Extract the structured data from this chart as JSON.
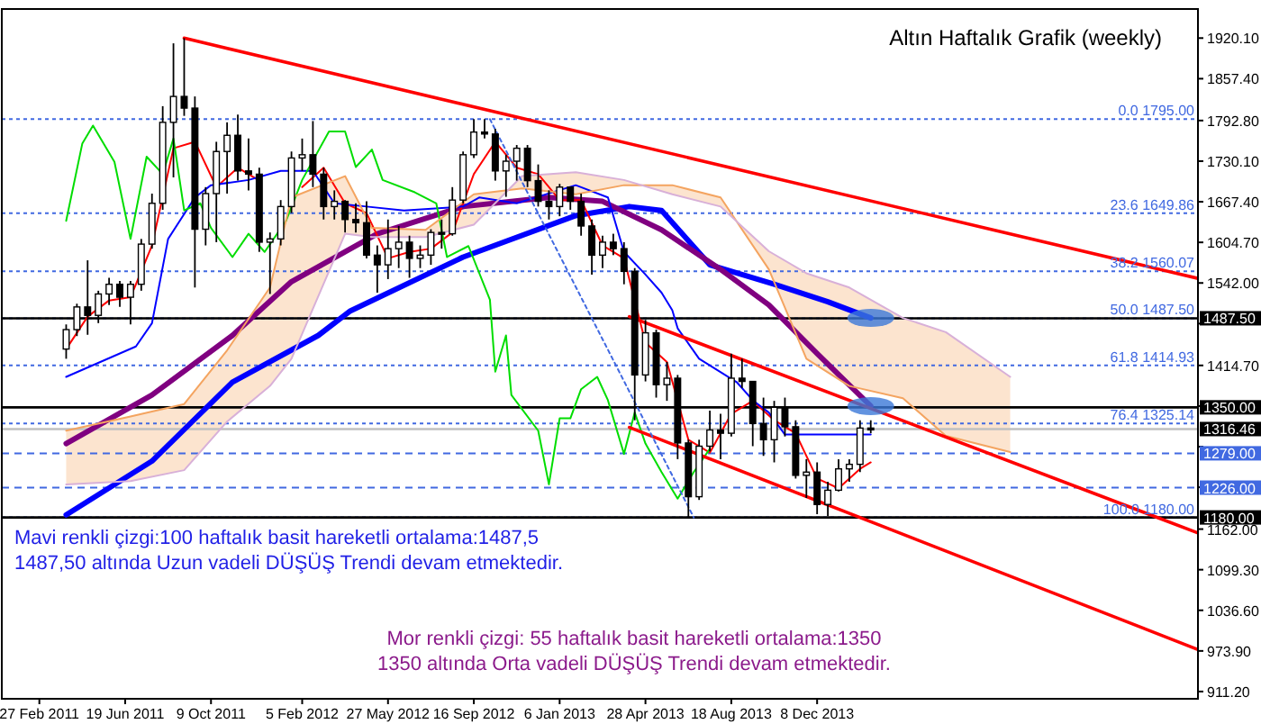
{
  "chart_data": {
    "type": "candlestick",
    "title": "Altın Haftalık Grafik (weekly)",
    "annotations": [
      "Mavi renkli çizgi:100 haftalık basit hareketli ortalama:1487,5",
      "1487,50 altında Uzun vadeli DÜŞÜŞ Trendi devam etmektedir.",
      "Mor renkli çizgi: 55 haftalık basit hareketli ortalama:1350",
      "1350 altında Orta vadeli DÜŞÜŞ Trendi devam etmektedir."
    ],
    "color": "#000000",
    "x": [
      "2011-04-03",
      "2011-04-17",
      "2011-05-01",
      "2011-05-15",
      "2011-05-29",
      "2011-06-12",
      "2011-06-26",
      "2011-07-10",
      "2011-07-24",
      "2011-08-07",
      "2011-08-21",
      "2011-09-04",
      "2011-09-18",
      "2011-10-02",
      "2011-10-16",
      "2011-10-30",
      "2011-11-13",
      "2011-11-27",
      "2011-12-11",
      "2011-12-25",
      "2012-01-08",
      "2012-01-22",
      "2012-02-05",
      "2012-02-19",
      "2012-03-04",
      "2012-03-18",
      "2012-04-01",
      "2012-04-15",
      "2012-04-29",
      "2012-05-13",
      "2012-05-27",
      "2012-06-10",
      "2012-06-24",
      "2012-07-08",
      "2012-07-22",
      "2012-08-05",
      "2012-08-19",
      "2012-09-02",
      "2012-09-16",
      "2012-09-30",
      "2012-10-14",
      "2012-10-28",
      "2012-11-11",
      "2012-11-25",
      "2012-12-09",
      "2012-12-23",
      "2013-01-06",
      "2013-01-20",
      "2013-02-03",
      "2013-02-17",
      "2013-03-03",
      "2013-03-17",
      "2013-03-31",
      "2013-04-14",
      "2013-04-28",
      "2013-05-12",
      "2013-05-26",
      "2013-06-09",
      "2013-06-23",
      "2013-07-07",
      "2013-07-21",
      "2013-08-04",
      "2013-08-18",
      "2013-09-01",
      "2013-09-15",
      "2013-09-29",
      "2013-10-13",
      "2013-10-27",
      "2013-11-10",
      "2013-11-24",
      "2013-12-08",
      "2013-12-22",
      "2014-01-05",
      "2014-01-19",
      "2014-02-02",
      "2014-02-16"
    ],
    "ohlc": [
      [
        1440,
        1478,
        1425,
        1470
      ],
      [
        1470,
        1510,
        1460,
        1505
      ],
      [
        1505,
        1577,
        1462,
        1492
      ],
      [
        1492,
        1530,
        1480,
        1525
      ],
      [
        1525,
        1550,
        1508,
        1540
      ],
      [
        1540,
        1545,
        1505,
        1520
      ],
      [
        1520,
        1545,
        1478,
        1540
      ],
      [
        1540,
        1610,
        1530,
        1602
      ],
      [
        1602,
        1680,
        1595,
        1665
      ],
      [
        1665,
        1815,
        1655,
        1790
      ],
      [
        1790,
        1912,
        1705,
        1830
      ],
      [
        1830,
        1920,
        1800,
        1812
      ],
      [
        1812,
        1830,
        1535,
        1625
      ],
      [
        1625,
        1690,
        1600,
        1680
      ],
      [
        1680,
        1760,
        1605,
        1745
      ],
      [
        1745,
        1790,
        1680,
        1770
      ],
      [
        1770,
        1802,
        1700,
        1715
      ],
      [
        1715,
        1765,
        1685,
        1710
      ],
      [
        1710,
        1720,
        1590,
        1605
      ],
      [
        1605,
        1620,
        1525,
        1610
      ],
      [
        1610,
        1670,
        1600,
        1660
      ],
      [
        1660,
        1745,
        1650,
        1735
      ],
      [
        1735,
        1765,
        1715,
        1740
      ],
      [
        1740,
        1792,
        1690,
        1710
      ],
      [
        1710,
        1720,
        1640,
        1660
      ],
      [
        1660,
        1685,
        1640,
        1668
      ],
      [
        1668,
        1670,
        1620,
        1640
      ],
      [
        1640,
        1665,
        1620,
        1635
      ],
      [
        1635,
        1668,
        1580,
        1585
      ],
      [
        1585,
        1600,
        1527,
        1570
      ],
      [
        1570,
        1640,
        1548,
        1595
      ],
      [
        1595,
        1630,
        1565,
        1605
      ],
      [
        1605,
        1615,
        1550,
        1580
      ],
      [
        1580,
        1600,
        1565,
        1585
      ],
      [
        1585,
        1625,
        1570,
        1620
      ],
      [
        1620,
        1640,
        1595,
        1618
      ],
      [
        1618,
        1690,
        1615,
        1670
      ],
      [
        1670,
        1745,
        1665,
        1740
      ],
      [
        1740,
        1795,
        1735,
        1775
      ],
      [
        1775,
        1795,
        1765,
        1772
      ],
      [
        1772,
        1780,
        1700,
        1715
      ],
      [
        1715,
        1740,
        1675,
        1730
      ],
      [
        1730,
        1755,
        1700,
        1750
      ],
      [
        1750,
        1755,
        1690,
        1700
      ],
      [
        1700,
        1725,
        1660,
        1668
      ],
      [
        1668,
        1685,
        1640,
        1660
      ],
      [
        1660,
        1695,
        1645,
        1690
      ],
      [
        1690,
        1690,
        1655,
        1668
      ],
      [
        1668,
        1680,
        1615,
        1630
      ],
      [
        1630,
        1640,
        1555,
        1585
      ],
      [
        1585,
        1615,
        1565,
        1605
      ],
      [
        1605,
        1618,
        1585,
        1595
      ],
      [
        1595,
        1605,
        1540,
        1560
      ],
      [
        1560,
        1565,
        1330,
        1400
      ],
      [
        1400,
        1485,
        1390,
        1465
      ],
      [
        1465,
        1470,
        1365,
        1385
      ],
      [
        1385,
        1420,
        1360,
        1395
      ],
      [
        1395,
        1400,
        1270,
        1295
      ],
      [
        1295,
        1300,
        1180,
        1212
      ],
      [
        1212,
        1300,
        1207,
        1290
      ],
      [
        1290,
        1345,
        1282,
        1315
      ],
      [
        1315,
        1340,
        1270,
        1310
      ],
      [
        1310,
        1433,
        1305,
        1395
      ],
      [
        1395,
        1425,
        1380,
        1390
      ],
      [
        1390,
        1390,
        1290,
        1325
      ],
      [
        1325,
        1365,
        1275,
        1300
      ],
      [
        1300,
        1360,
        1265,
        1350
      ],
      [
        1350,
        1365,
        1305,
        1320
      ],
      [
        1320,
        1330,
        1240,
        1245
      ],
      [
        1245,
        1270,
        1210,
        1250
      ],
      [
        1250,
        1265,
        1185,
        1200
      ],
      [
        1200,
        1235,
        1182,
        1222
      ],
      [
        1222,
        1270,
        1220,
        1255
      ],
      [
        1255,
        1270,
        1235,
        1262
      ],
      [
        1262,
        1330,
        1250,
        1318
      ],
      [
        1318,
        1330,
        1310,
        1316
      ]
    ],
    "series": [
      {
        "type": "line",
        "color": "#0000ff",
        "x": [
          "2011-04-03",
          "2011-07-24",
          "2011-11-06",
          "2012-02-26",
          "2012-04-08",
          "2012-09-02",
          "2013-01-27",
          "2013-04-07",
          "2013-05-19",
          "2013-07-21",
          "2013-10-13",
          "2013-12-22",
          "2014-02-16"
        ],
        "values": [
          1184,
          1267,
          1389,
          1461,
          1499,
          1582,
          1646,
          1660,
          1654,
          1570,
          1540,
          1513,
          1488
        ]
      },
      {
        "type": "line",
        "color": "#800080",
        "x": [
          "2011-04-03",
          "2011-07-24",
          "2011-11-06",
          "2012-01-22",
          "2012-05-13",
          "2012-09-02",
          "2012-12-23",
          "2013-03-03",
          "2013-05-19",
          "2013-08-04",
          "2013-10-06",
          "2013-12-08",
          "2014-02-16"
        ],
        "values": [
          1294,
          1369,
          1461,
          1544,
          1618,
          1660,
          1674,
          1668,
          1624,
          1563,
          1508,
          1433,
          1352
        ]
      },
      {
        "type": "line",
        "color": "#ff0000",
        "x": [
          "2011-04-03",
          "2011-05-01",
          "2011-05-29",
          "2011-06-26",
          "2011-07-24",
          "2011-08-21",
          "2011-09-18",
          "2011-10-16",
          "2011-11-13",
          "2011-12-11",
          "2012-01-08",
          "2012-02-05",
          "2012-03-04",
          "2012-04-01",
          "2012-04-29",
          "2012-05-27",
          "2012-06-24",
          "2012-07-22",
          "2012-08-19",
          "2012-09-16",
          "2012-10-14",
          "2012-11-11",
          "2012-12-09",
          "2013-01-06",
          "2013-02-03",
          "2013-03-03",
          "2013-03-31",
          "2013-04-28",
          "2013-05-26",
          "2013-06-23",
          "2013-07-21",
          "2013-08-18",
          "2013-09-15",
          "2013-10-13",
          "2013-11-10",
          "2013-12-08",
          "2014-01-05",
          "2014-02-02",
          "2014-02-16"
        ],
        "values": [
          1440,
          1490,
          1515,
          1520,
          1600,
          1750,
          1760,
          1690,
          1720,
          1700,
          null,
          1690,
          1720,
          1665,
          1650,
          1580,
          1590,
          1595,
          1620,
          1710,
          1760,
          1720,
          1710,
          1670,
          1670,
          1600,
          1580,
          1450,
          1420,
          1300,
          1280,
          1340,
          1360,
          1330,
          1310,
          1240,
          1225,
          1255,
          1265
        ]
      },
      {
        "type": "line",
        "color": "#0000ff",
        "x": [
          "2011-04-03",
          "2011-07-03",
          "2011-07-24",
          "2011-08-14",
          "2011-09-18",
          "2011-10-09",
          "2011-11-27",
          "2012-01-08",
          "2012-02-19",
          "2012-03-18",
          "2012-04-29",
          "2012-06-17",
          "2012-09-02",
          "2012-09-23",
          "2012-11-11",
          "2013-01-27",
          "2013-03-10",
          "2013-03-31",
          "2013-04-28",
          "2013-05-19",
          "2013-06-02",
          "2013-06-09",
          "2013-07-07",
          "2013-08-25",
          "2013-09-15",
          "2013-10-06",
          "2013-10-27",
          "2014-02-16"
        ],
        "values": [
          1397,
          1444,
          1480,
          1610,
          1674,
          1693,
          1701,
          1715,
          1715,
          1665,
          1660,
          1654,
          1660,
          1674,
          1665,
          1693,
          1674,
          1590,
          1555,
          1527,
          1500,
          1472,
          1425,
          1389,
          1361,
          1342,
          1308,
          1308
        ]
      },
      {
        "type": "line",
        "color": "#00dd00",
        "x": [
          "2011-04-03",
          "2011-04-24",
          "2011-05-08",
          "2011-06-05",
          "2011-06-26",
          "2011-07-17",
          "2011-08-07",
          "2011-08-21",
          "2011-09-04",
          "2011-09-25",
          "2011-10-09",
          "2011-11-06",
          "2011-11-27",
          "2011-12-18",
          "2012-01-15",
          "2012-02-05",
          "2012-03-11",
          "2012-04-01",
          "2012-04-15",
          "2012-05-06",
          "2012-05-20",
          "2012-07-01",
          "2012-07-29",
          "2012-08-12",
          "2012-09-09",
          "2012-10-07",
          "2012-10-14",
          "2012-10-28",
          "2012-11-04",
          "2012-12-09",
          "2012-12-23",
          "2013-01-06",
          "2013-01-20",
          "2013-02-03",
          "2013-02-24",
          "2013-03-10",
          "2013-03-31",
          "2013-04-14",
          "2013-04-28",
          "2013-05-19",
          "2013-06-09",
          "2013-06-30",
          "2013-07-21"
        ],
        "values": [
          1638,
          1757,
          1785,
          1729,
          1610,
          1737,
          1710,
          1765,
          1654,
          1665,
          1627,
          1582,
          1618,
          1590,
          1638,
          1701,
          1776,
          1776,
          1721,
          1748,
          1701,
          1682,
          1665,
          1582,
          1599,
          1516,
          1405,
          1461,
          1369,
          1314,
          1231,
          1333,
          1333,
          1378,
          1397,
          1361,
          1278,
          1342,
          1294,
          1250,
          1209,
          1250,
          1286
        ]
      },
      {
        "type": "line",
        "color": "#f4a460",
        "x": [
          "2011-04-03",
          "2011-06-26",
          "2011-09-04",
          "2011-10-30",
          "2011-12-25",
          "2012-01-22",
          "2012-04-01",
          "2012-05-06",
          "2012-07-15",
          "2012-09-16",
          "2012-11-18",
          "2013-01-27",
          "2013-03-31",
          "2013-06-02",
          "2013-08-04",
          "2013-10-06",
          "2013-11-24",
          "2014-01-19",
          "2014-03-30",
          "2014-05-25",
          "2014-08-17"
        ],
        "values": [
          1314,
          1336,
          1355,
          1438,
          1535,
          1674,
          1707,
          1627,
          1624,
          1679,
          1688,
          1679,
          1693,
          1693,
          1674,
          1563,
          1425,
          1383,
          1364,
          1306,
          1281
        ]
      },
      {
        "type": "line",
        "color": "#d8b0d8",
        "x": [
          "2011-04-03",
          "2011-06-26",
          "2011-09-04",
          "2011-10-30",
          "2011-12-25",
          "2012-01-22",
          "2012-04-01",
          "2012-05-06",
          "2012-07-15",
          "2012-09-16",
          "2012-11-18",
          "2013-01-27",
          "2013-03-31",
          "2013-06-02",
          "2013-08-04",
          "2013-10-06",
          "2013-11-24",
          "2014-01-19",
          "2014-03-30",
          "2014-05-25",
          "2014-08-17"
        ],
        "values": [
          1231,
          1236,
          1253,
          1328,
          1383,
          1425,
          1618,
          1613,
          1613,
          1632,
          1707,
          1713,
          1701,
          1679,
          1660,
          1591,
          1557,
          1535,
          1488,
          1466,
          1397
        ]
      },
      {
        "type": "line",
        "color": "#ff0000",
        "x": [
          "2011-09-04",
          "2015-04-19"
        ],
        "values": [
          1920,
          1549
        ]
      },
      {
        "type": "line",
        "color": "#ff0000",
        "x": [
          "2013-04-07",
          "2015-04-19"
        ],
        "values": [
          1490,
          1156
        ]
      },
      {
        "type": "line",
        "color": "#ff0000",
        "x": [
          "2013-04-07",
          "2015-04-19"
        ],
        "values": [
          1319,
          976
        ]
      },
      {
        "type": "line",
        "color": "#4169e1",
        "line_style": "dotted",
        "x": [
          "2012-10-07",
          "2013-06-30"
        ],
        "values": [
          1795,
          1180
        ]
      }
    ],
    "ref_lines": [
      {
        "axis": "y",
        "value": 1795,
        "label": "0.0 1795.00",
        "color": "#4169e1",
        "line_style": "dotted"
      },
      {
        "axis": "y",
        "value": 1649.86,
        "label": "23.6 1649.86",
        "color": "#4169e1",
        "line_style": "dotted"
      },
      {
        "axis": "y",
        "value": 1560.07,
        "label": "38.2 1560.07",
        "color": "#4169e1",
        "line_style": "dotted"
      },
      {
        "axis": "y",
        "value": 1487.5,
        "label": "50.0 1487.50",
        "color": "#4169e1",
        "line_style": "dotted"
      },
      {
        "axis": "y",
        "value": 1414.93,
        "label": "61.8 1414.93",
        "color": "#4169e1",
        "line_style": "dotted"
      },
      {
        "axis": "y",
        "value": 1325.14,
        "label": "76.4 1325.14",
        "color": "#4169e1",
        "line_style": "dotted"
      },
      {
        "axis": "y",
        "value": 1180,
        "label": "100.0 1180.00",
        "color": "#4169e1",
        "line_style": "dotted"
      },
      {
        "axis": "y",
        "value": 1279,
        "label": "1279.00",
        "color": "#4169e1",
        "line_style": "dashed"
      },
      {
        "axis": "y",
        "value": 1226,
        "label": "1226.00",
        "color": "#4169e1",
        "line_style": "dashed"
      },
      {
        "axis": "y",
        "value": 1316.46,
        "label": "1316.46",
        "color": "#c0c0c0",
        "line_style": "solid"
      },
      {
        "axis": "y",
        "value": 1487.5,
        "label": "1487.50",
        "color": "#000000",
        "line_style": "solid"
      },
      {
        "axis": "y",
        "value": 1350,
        "label": "1350.00",
        "color": "#000000",
        "line_style": "solid"
      },
      {
        "axis": "y",
        "value": 1180,
        "label": "1180.00",
        "color": "#000000",
        "line_style": "solid"
      }
    ],
    "xlim": [
      "2011-01-09",
      "2015-04-19"
    ],
    "xticks": [
      {
        "value": "2011-02-27",
        "label": "27 Feb 2011"
      },
      {
        "value": "2011-06-19",
        "label": "19 Jun 2011"
      },
      {
        "value": "2011-10-09",
        "label": "9 Oct 2011"
      },
      {
        "value": "2012-02-05",
        "label": "5 Feb 2012"
      },
      {
        "value": "2012-05-27",
        "label": "27 May 2012"
      },
      {
        "value": "2012-09-16",
        "label": "16 Sep 2012"
      },
      {
        "value": "2013-01-06",
        "label": "6 Jan 2013"
      },
      {
        "value": "2013-04-28",
        "label": "28 Apr 2013"
      },
      {
        "value": "2013-08-18",
        "label": "18 Aug 2013"
      },
      {
        "value": "2013-12-08",
        "label": "8 Dec 2013"
      }
    ],
    "ylim": [
      900,
      1965
    ],
    "yticks": [
      {
        "value": 1920.1,
        "label": "1920.10"
      },
      {
        "value": 1857.4,
        "label": "1857.40"
      },
      {
        "value": 1792.8,
        "label": "1792.80"
      },
      {
        "value": 1730.1,
        "label": "1730.10"
      },
      {
        "value": 1667.4,
        "label": "1667.40"
      },
      {
        "value": 1604.7,
        "label": "1604.70"
      },
      {
        "value": 1542,
        "label": "1542.00"
      },
      {
        "value": 1479.3,
        "label": null
      },
      {
        "value": 1414.7,
        "label": "1414.70"
      },
      {
        "value": 1352,
        "label": null
      },
      {
        "value": 1289.3,
        "label": null
      },
      {
        "value": 1226.6,
        "label": null
      },
      {
        "value": 1162,
        "label": "1162.00"
      },
      {
        "value": 1099.3,
        "label": "1099.30"
      },
      {
        "value": 1036.6,
        "label": "1036.60"
      },
      {
        "value": 973.9,
        "label": "973.90"
      },
      {
        "value": 911.2,
        "label": "911.20"
      }
    ]
  }
}
